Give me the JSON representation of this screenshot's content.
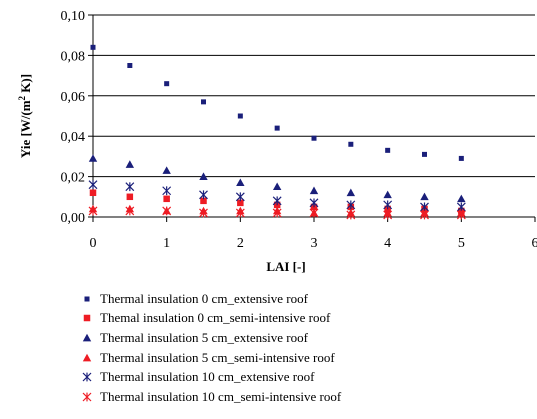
{
  "chart_data": {
    "type": "scatter",
    "title": "",
    "xlabel": "LAI [-]",
    "ylabel": "Yie [W/(m2 K)]",
    "ylabel_main": "Yie [W/(m",
    "ylabel_sup": "2",
    "ylabel_tail": " K)]",
    "xlim": [
      0,
      6
    ],
    "ylim": [
      0,
      0.1
    ],
    "x_ticks": [
      "0",
      "1",
      "2",
      "3",
      "4",
      "5",
      "6"
    ],
    "y_ticks": [
      "0,00",
      "0,02",
      "0,04",
      "0,06",
      "0,08",
      "0,10"
    ],
    "grid": "horizontal",
    "legend_position": "bottom",
    "x": [
      0,
      0.5,
      1,
      1.5,
      2,
      2.5,
      3,
      3.5,
      4,
      4.5,
      5
    ],
    "series": [
      {
        "name": "Thermal insulation 0 cm_extensive roof",
        "marker": "square-small",
        "color": "#1a1f7a",
        "values": [
          0.084,
          0.075,
          0.066,
          0.057,
          0.05,
          0.044,
          0.039,
          0.036,
          0.033,
          0.031,
          0.029
        ]
      },
      {
        "name": "Themal insulation 0 cm_semi-intensive roof",
        "marker": "square",
        "color": "#ee1c24",
        "values": [
          0.012,
          0.01,
          0.009,
          0.008,
          0.007,
          0.006,
          0.005,
          0.005,
          0.004,
          0.004,
          0.003
        ]
      },
      {
        "name": "Thermal insulation 5 cm_extensive roof",
        "marker": "triangle",
        "color": "#1a1f7a",
        "values": [
          0.029,
          0.026,
          0.023,
          0.02,
          0.017,
          0.015,
          0.013,
          0.012,
          0.011,
          0.01,
          0.009
        ]
      },
      {
        "name": "Thermal insulation 5 cm_semi-intensive roof",
        "marker": "triangle",
        "color": "#ee1c24",
        "values": [
          0.004,
          0.004,
          0.003,
          0.003,
          0.003,
          0.003,
          0.002,
          0.002,
          0.002,
          0.002,
          0.002
        ]
      },
      {
        "name": "Thermal insulation 10 cm_extensive roof",
        "marker": "asterisk",
        "color": "#1a1f7a",
        "values": [
          0.016,
          0.015,
          0.013,
          0.011,
          0.01,
          0.008,
          0.007,
          0.006,
          0.006,
          0.005,
          0.005
        ]
      },
      {
        "name": "Thermal insulation 10 cm_semi-intensive roof",
        "marker": "asterisk",
        "color": "#ee1c24",
        "values": [
          0.003,
          0.003,
          0.003,
          0.002,
          0.002,
          0.002,
          0.002,
          0.001,
          0.001,
          0.001,
          0.001
        ]
      }
    ]
  }
}
